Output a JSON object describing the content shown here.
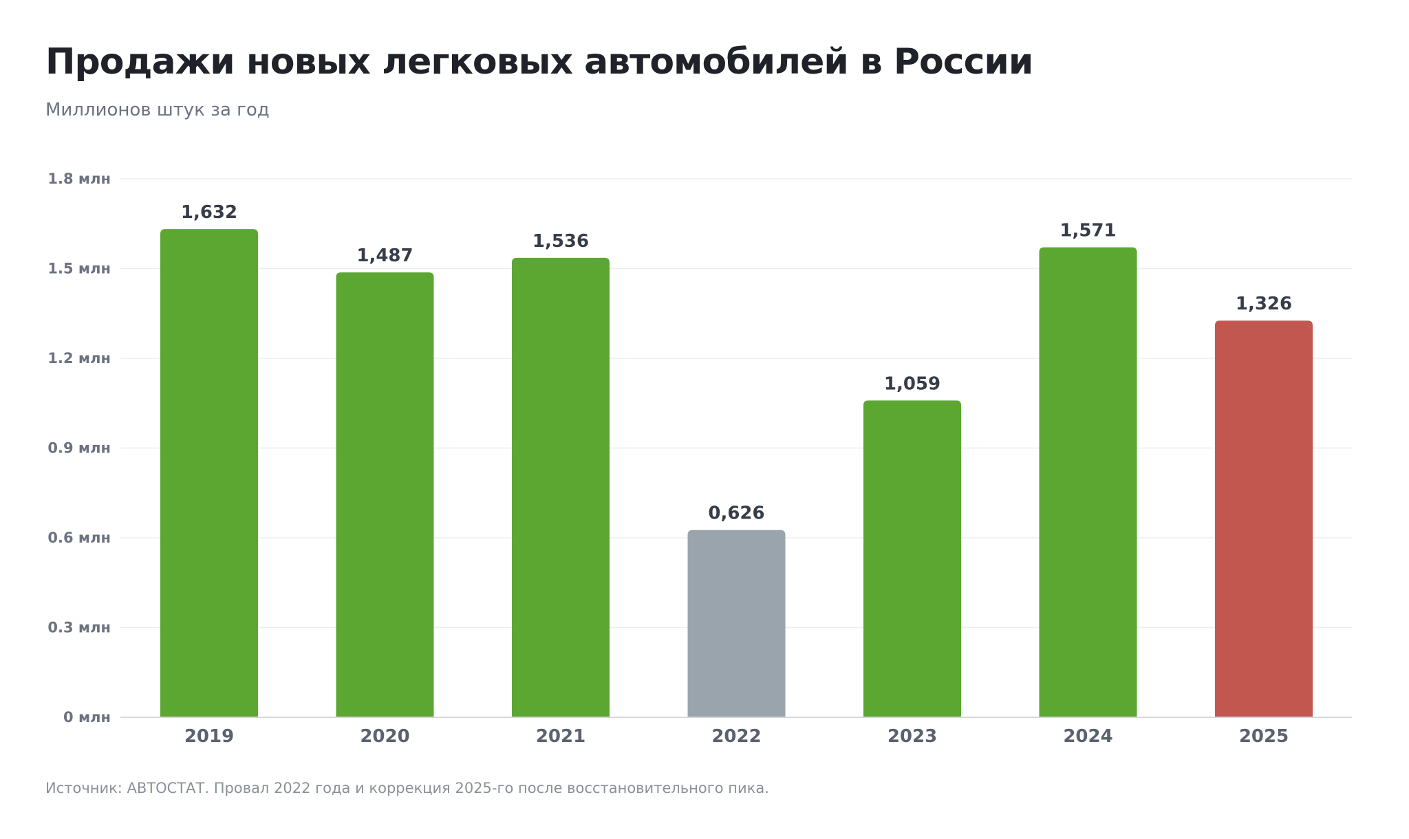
{
  "chart_data": {
    "type": "bar",
    "title": "Продажи новых легковых автомобилей в России",
    "subtitle": "Миллионов штук за год",
    "source": "Источник: АВТОСТАТ. Провал 2022 года и коррекция 2025-го после восстановительного пика.",
    "categories": [
      "2019",
      "2020",
      "2021",
      "2022",
      "2023",
      "2024",
      "2025"
    ],
    "values": [
      1.632,
      1.487,
      1.536,
      0.626,
      1.059,
      1.571,
      1.326
    ],
    "value_labels": [
      "1,632",
      "1,487",
      "1,536",
      "0,626",
      "1,059",
      "1,571",
      "1,326"
    ],
    "bar_colors": [
      "#5ba732",
      "#5ba732",
      "#5ba732",
      "#9aa4ad",
      "#5ba732",
      "#5ba732",
      "#c25750"
    ],
    "ylim": [
      0,
      1.8
    ],
    "y_ticks": [
      0,
      0.3,
      0.6,
      0.9,
      1.2,
      1.5,
      1.8
    ],
    "y_tick_labels": [
      "0 млн",
      "0.3 млн",
      "0.6 млн",
      "0.9 млн",
      "1.2 млн",
      "1.5 млн",
      "1.8 млн"
    ],
    "grid": true,
    "xlabel": "",
    "ylabel": ""
  }
}
